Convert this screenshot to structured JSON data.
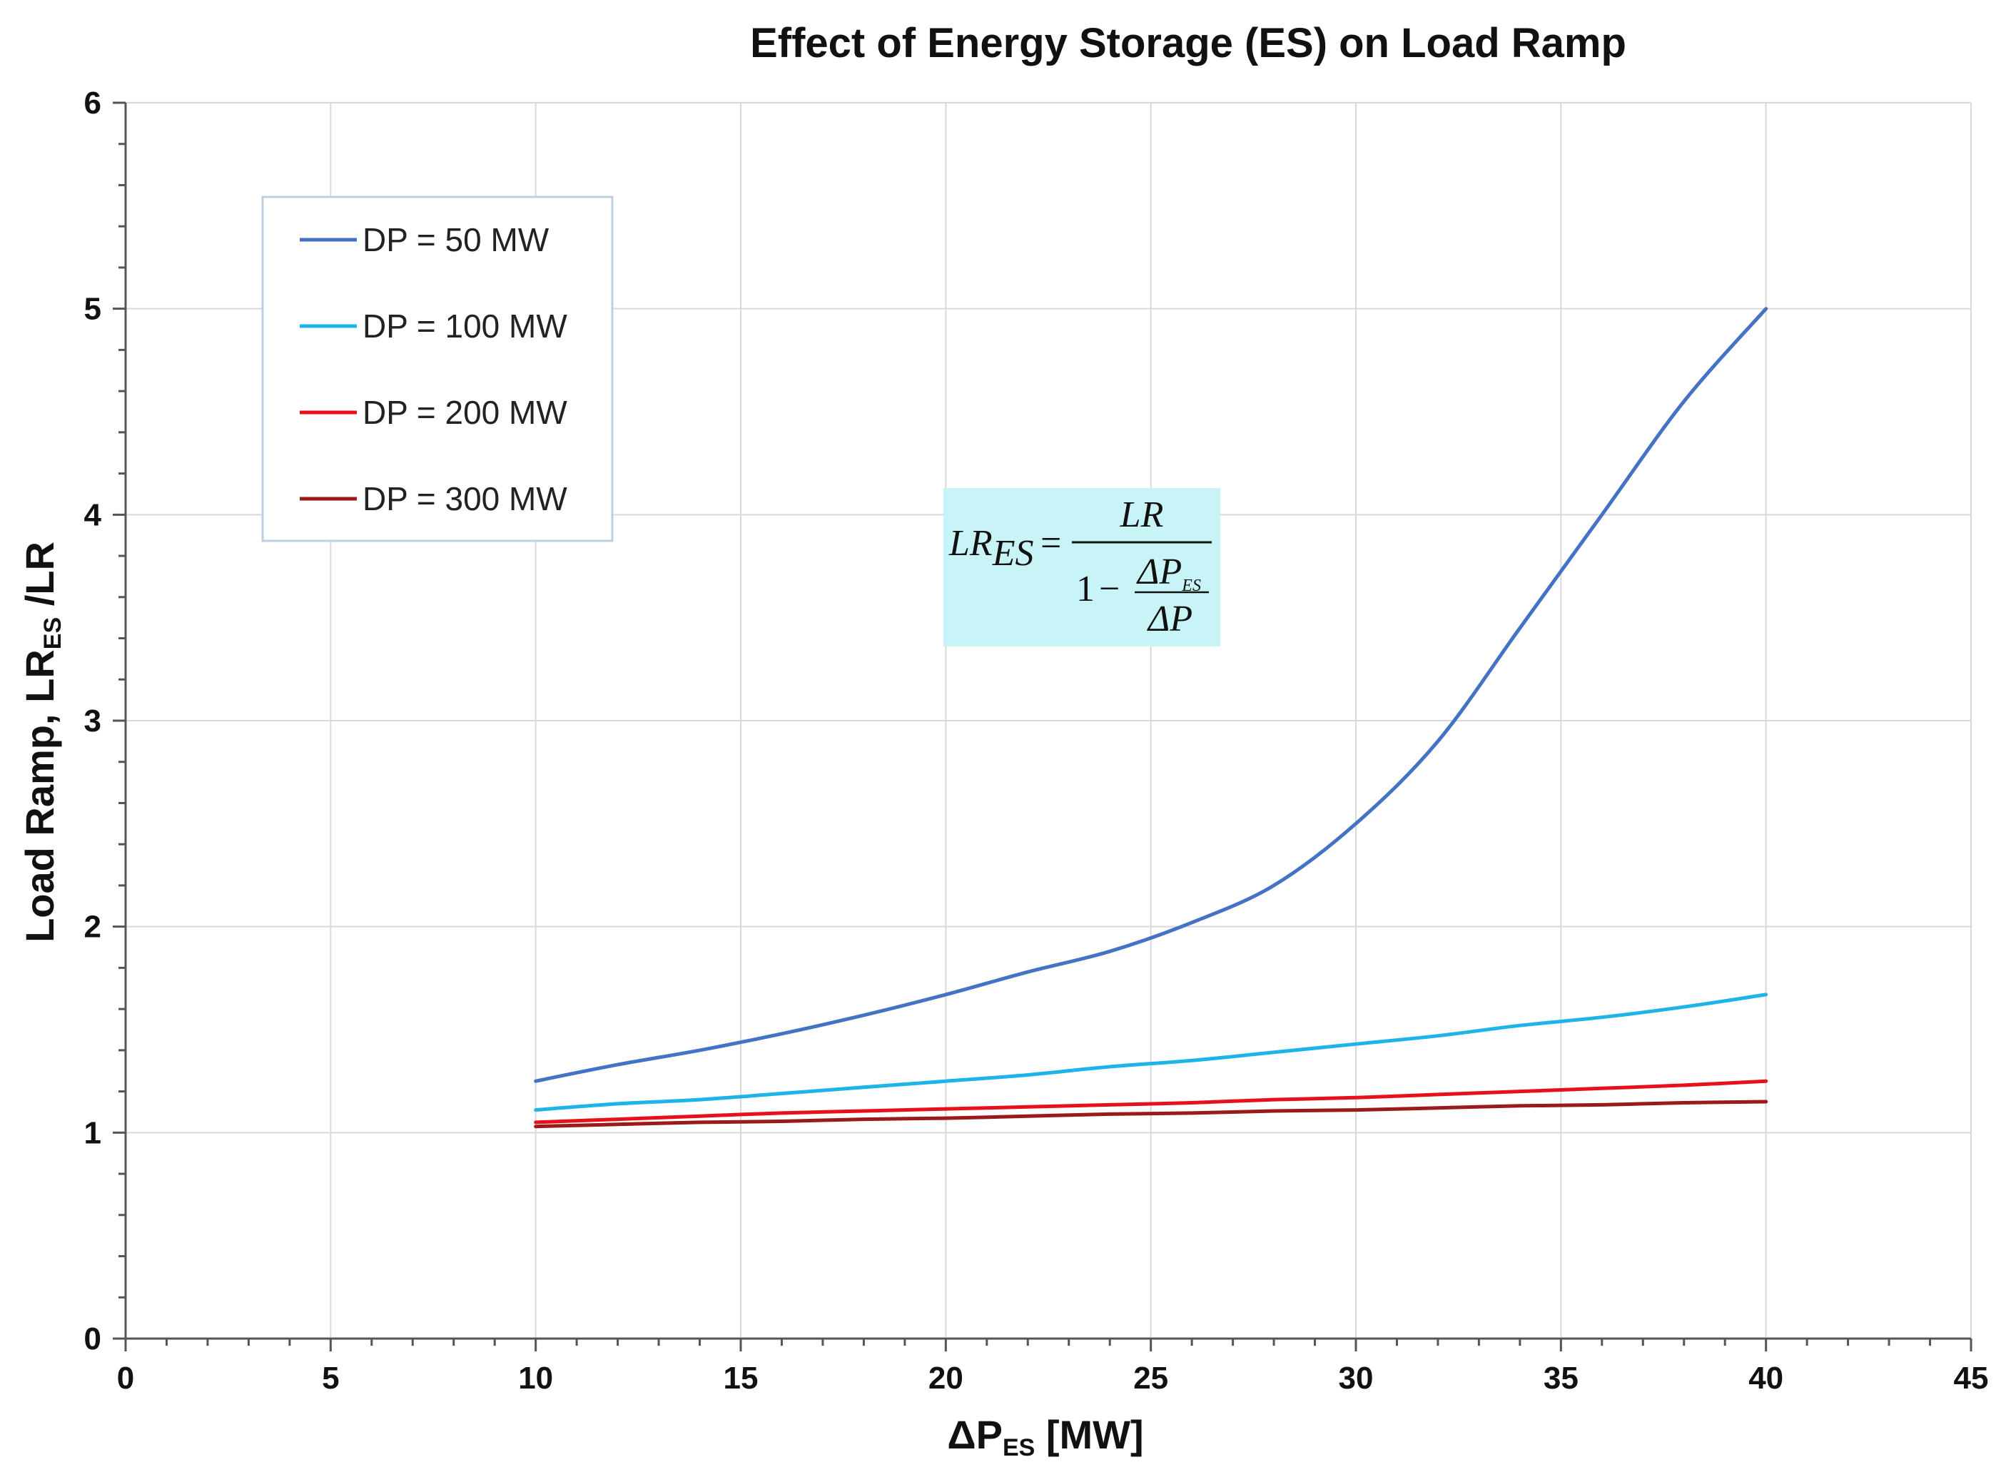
{
  "chart_data": {
    "type": "line",
    "title": "Effect of Energy Storage (ES) on Load Ramp",
    "xlabel": {
      "main": "ΔP",
      "sub": "ES",
      "rest": " [MW]"
    },
    "ylabel": {
      "main": "Load Ramp, LR",
      "sub": "ES",
      "rest": " /LR"
    },
    "xlim": [
      0,
      45
    ],
    "ylim": [
      0,
      6
    ],
    "xticks": [
      0,
      5,
      10,
      15,
      20,
      25,
      30,
      35,
      40,
      45
    ],
    "yticks": [
      0,
      1,
      2,
      3,
      4,
      5,
      6
    ],
    "xtick_labels": [
      "0",
      "5",
      "10",
      "15",
      "20",
      "25",
      "30",
      "35",
      "40",
      "45"
    ],
    "ytick_labels": [
      "0",
      "1",
      "2",
      "3",
      "4",
      "5",
      "6"
    ],
    "grid": true,
    "legend_position": "top-left",
    "x": [
      10,
      12,
      14,
      16,
      18,
      20,
      22,
      24,
      26,
      28,
      30,
      32,
      34,
      36,
      38,
      40
    ],
    "series": [
      {
        "name": "DP = 50 MW",
        "color": "#4472c4",
        "values": [
          1.25,
          1.33,
          1.4,
          1.48,
          1.57,
          1.67,
          1.78,
          1.88,
          2.02,
          2.2,
          2.5,
          2.9,
          3.45,
          4.0,
          4.55,
          5.0
        ]
      },
      {
        "name": "DP = 100 MW",
        "color": "#1fb4e8",
        "values": [
          1.11,
          1.14,
          1.16,
          1.19,
          1.22,
          1.25,
          1.28,
          1.32,
          1.35,
          1.39,
          1.43,
          1.47,
          1.52,
          1.56,
          1.61,
          1.67
        ]
      },
      {
        "name": "DP = 200 MW",
        "color": "#e8101a",
        "values": [
          1.05,
          1.065,
          1.08,
          1.095,
          1.105,
          1.115,
          1.125,
          1.135,
          1.145,
          1.16,
          1.17,
          1.185,
          1.2,
          1.215,
          1.23,
          1.25
        ]
      },
      {
        "name": "DP = 300 MW",
        "color": "#9b1b1b",
        "values": [
          1.03,
          1.04,
          1.05,
          1.055,
          1.065,
          1.07,
          1.08,
          1.09,
          1.095,
          1.105,
          1.11,
          1.12,
          1.13,
          1.135,
          1.145,
          1.15
        ]
      }
    ],
    "annotation": {
      "lhs": "LR",
      "lhs_sub": "ES",
      "equals": "=",
      "numerator": "LR",
      "one": "1",
      "minus": "−",
      "inner_num": "ΔP",
      "inner_num_sub": "ES",
      "inner_den": "ΔP",
      "background": "#c9f4f7"
    }
  }
}
